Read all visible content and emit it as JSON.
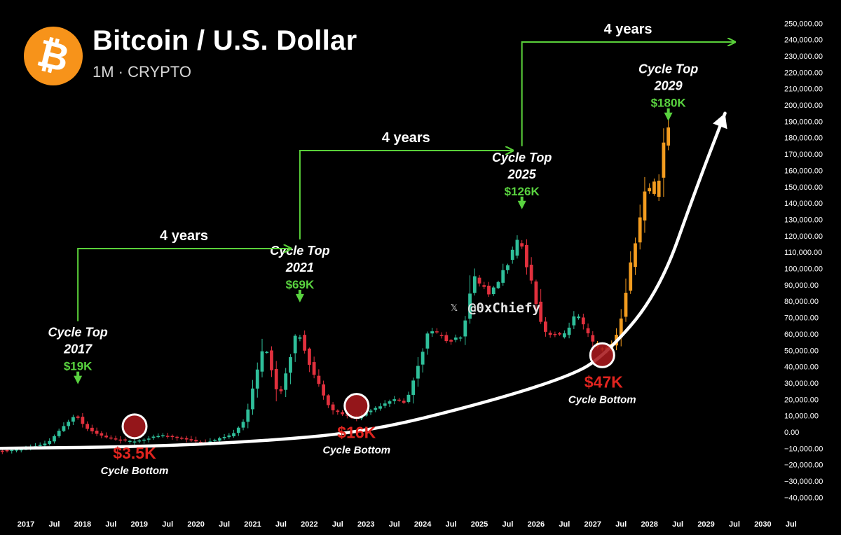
{
  "header": {
    "title": "Bitcoin / U.S. Dollar",
    "subtitle": "1M · CRYPTO",
    "logo_icon": "bitcoin-icon",
    "logo_symbol": "₿"
  },
  "watermark": {
    "icon": "x-logo-icon",
    "symbol": "𝕏",
    "handle": "@0xChiefy"
  },
  "colors": {
    "up": "#2fbf9a",
    "down": "#e1303d",
    "projection": "#f39c1f",
    "arrow": "#5ad13a",
    "price_label": "#59d23f",
    "bottom_label": "#e0241f",
    "curve": "#ffffff",
    "circle_fill": "#a8191e"
  },
  "chart_data": {
    "type": "candlestick",
    "title": "Bitcoin / U.S. Dollar",
    "timeframe": "1M",
    "xlabels": [
      "2017",
      "Jul",
      "2018",
      "Jul",
      "2019",
      "Jul",
      "2020",
      "Jul",
      "2021",
      "Jul",
      "2022",
      "Jul",
      "2023",
      "Jul",
      "2024",
      "Jul",
      "2025",
      "Jul",
      "2026",
      "Jul",
      "2027",
      "Jul",
      "2028",
      "Jul",
      "2029",
      "Jul",
      "2030",
      "Jul"
    ],
    "ylim": [
      -40000,
      250000
    ],
    "yticks": [
      250000,
      240000,
      230000,
      220000,
      210000,
      200000,
      190000,
      180000,
      170000,
      160000,
      150000,
      140000,
      130000,
      120000,
      110000,
      100000,
      90000,
      80000,
      70000,
      60000,
      50000,
      40000,
      30000,
      20000,
      10000,
      0,
      -10000,
      -20000,
      -30000,
      -40000
    ],
    "ytick_labels": [
      "250,000.00",
      "240,000.00",
      "230,000.00",
      "220,000.00",
      "210,000.00",
      "200,000.00",
      "190,000.00",
      "180,000.00",
      "170,000.00",
      "160,000.00",
      "150,000.00",
      "140,000.00",
      "130,000.00",
      "120,000.00",
      "110,000.00",
      "100,000.00",
      "90,000.00",
      "80,000.00",
      "70,000.00",
      "60,000.00",
      "50,000.00",
      "40,000.00",
      "30,000.00",
      "20,000.00",
      "10,000.00",
      "0.00",
      "−10,000.00",
      "−20,000.00",
      "−30,000.00",
      "−40,000.00"
    ],
    "price_path": [
      [
        "2016-06",
        -12000
      ],
      [
        "2017-01",
        -10500
      ],
      [
        "2017-06",
        -7000
      ],
      [
        "2017-12",
        11000
      ],
      [
        "2018-02",
        3000
      ],
      [
        "2018-06",
        -3000
      ],
      [
        "2018-12",
        -6000
      ],
      [
        "2019-06",
        -2000
      ],
      [
        "2019-12",
        -4500
      ],
      [
        "2020-03",
        -7000
      ],
      [
        "2020-09",
        -2000
      ],
      [
        "2020-12",
        8000
      ],
      [
        "2021-04",
        56000
      ],
      [
        "2021-07",
        20000
      ],
      [
        "2021-11",
        63000
      ],
      [
        "2022-02",
        38000
      ],
      [
        "2022-06",
        14000
      ],
      [
        "2022-11",
        8000
      ],
      [
        "2023-03",
        14000
      ],
      [
        "2023-07",
        20000
      ],
      [
        "2023-10",
        18000
      ],
      [
        "2024-03",
        64000
      ],
      [
        "2024-07",
        55000
      ],
      [
        "2024-10",
        58000
      ],
      [
        "2024-12",
        96000
      ],
      [
        "2025-04",
        84000
      ],
      [
        "2025-10",
        118000
      ],
      [
        "2025-12",
        98000
      ],
      [
        "2026-03",
        62000
      ],
      [
        "2026-07",
        58000
      ],
      [
        "2026-10",
        72000
      ],
      [
        "2027-02",
        52000
      ],
      [
        "2027-05",
        50000
      ],
      [
        "2027-07",
        62000
      ],
      [
        "2027-10",
        110000
      ],
      [
        "2028-01",
        152000
      ],
      [
        "2028-03",
        145000
      ],
      [
        "2028-05",
        188000
      ]
    ],
    "projection_start": "2027-02",
    "cycle_tops": [
      {
        "label": "Cycle Top",
        "year": "2017",
        "price": "$19K",
        "date": "2017-12",
        "value": 19000
      },
      {
        "label": "Cycle Top",
        "year": "2021",
        "price": "$69K",
        "date": "2021-11",
        "value": 69000
      },
      {
        "label": "Cycle Top",
        "year": "2025",
        "price": "$126K",
        "date": "2025-10",
        "value": 126000
      },
      {
        "label": "Cycle Top",
        "year": "2029",
        "price": "$180K",
        "date": "2028-05",
        "value": 180000
      }
    ],
    "cycle_bottoms": [
      {
        "price": "$3.5K",
        "label": "Cycle Bottom",
        "date": "2018-12",
        "value": 3500
      },
      {
        "price": "$16K",
        "label": "Cycle Bottom",
        "date": "2022-11",
        "value": 16000
      },
      {
        "price": "$47K",
        "label": "Cycle Bottom",
        "date": "2027-03",
        "value": 47000
      }
    ],
    "four_year_arrows": [
      {
        "label": "4 years",
        "from": "2017-12",
        "to": "2021-11"
      },
      {
        "label": "4 years",
        "from": "2021-11",
        "to": "2025-10"
      },
      {
        "label": "4 years",
        "from": "2025-10",
        "to": "2029-09"
      }
    ],
    "support_curve": [
      [
        "2016-07",
        -10000
      ],
      [
        "2019-01",
        -9000
      ],
      [
        "2021-01",
        -6000
      ],
      [
        "2023-01",
        0
      ],
      [
        "2025-01",
        17000
      ],
      [
        "2026-07",
        33000
      ],
      [
        "2027-03",
        45000
      ],
      [
        "2028-03",
        85000
      ],
      [
        "2028-11",
        150000
      ],
      [
        "2029-05",
        195000
      ]
    ],
    "grid": false,
    "legend": "none"
  }
}
